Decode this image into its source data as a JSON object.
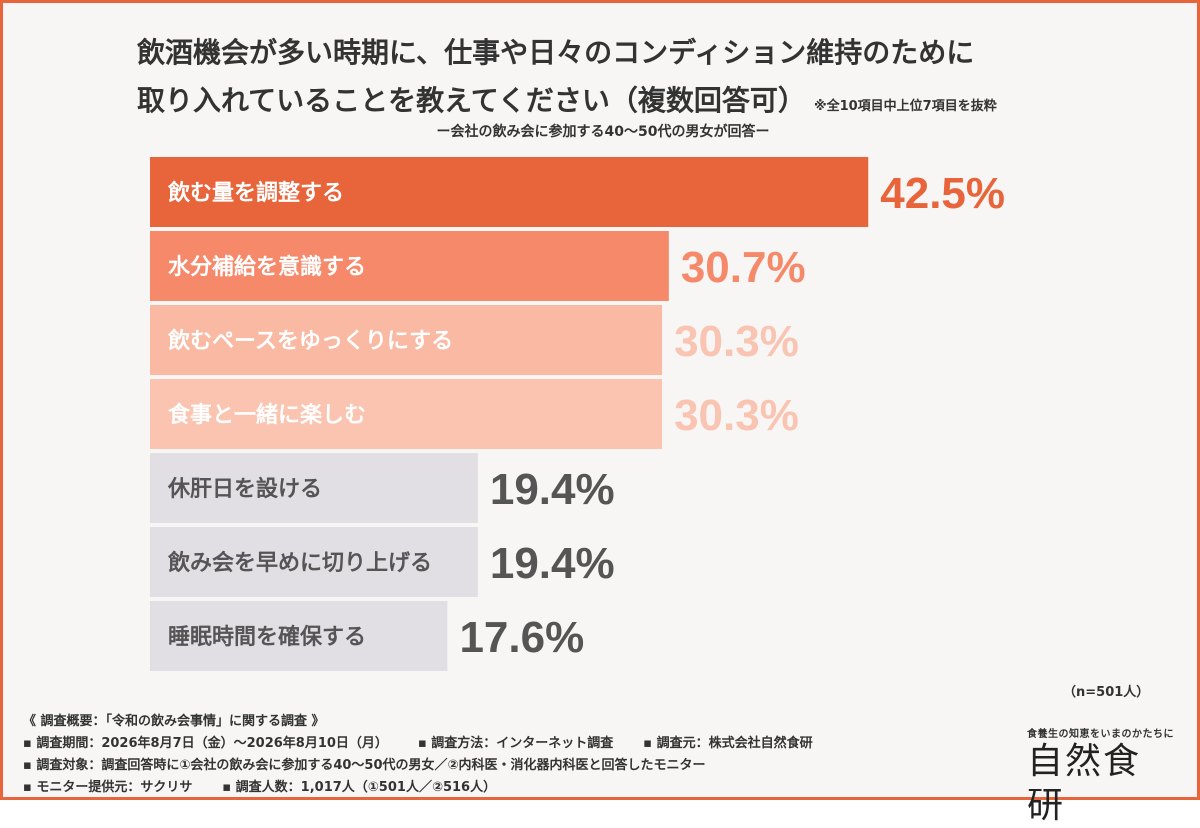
{
  "chart_data": {
    "type": "bar",
    "orientation": "horizontal",
    "title_line1": "飲酒機会が多い時期に、仕事や日々のコンディション維持のために",
    "title_line2": "取り入れていることを教えてください（複数回答可）",
    "title_note": "※全10項目中上位7項目を抜粋",
    "subtitle": "ー会社の飲み会に参加する40〜50代の男女が回答ー",
    "categories": [
      "飲む量を調整する",
      "水分補給を意識する",
      "飲むペースをゆっくりにする",
      "食事と一緒に楽しむ",
      "休肝日を設ける",
      "飲み会を早めに切り上げる",
      "睡眠時間を確保する"
    ],
    "values": [
      42.5,
      30.7,
      30.3,
      30.3,
      19.4,
      19.4,
      17.6
    ],
    "value_labels": [
      "42.5%",
      "30.7%",
      "30.3%",
      "30.3%",
      "19.4%",
      "19.4%",
      "17.6%"
    ],
    "unit": "%",
    "n_label": "（n=501人）",
    "colors": {
      "bars": [
        "#e8643a",
        "#f5896a",
        "#f9b9a3",
        "#fbc4b0",
        "#e2dfe4",
        "#e2dfe4",
        "#e2dfe4"
      ],
      "labels": [
        "#e8643a",
        "#f5896a",
        "#f9c4b2",
        "#f9c4b2",
        "#555555",
        "#555555",
        "#555555"
      ],
      "bar_text": [
        "#ffffff",
        "#ffffff",
        "#ffffff",
        "#ffffff",
        "#555555",
        "#555555",
        "#555555"
      ]
    }
  },
  "footer": {
    "overview": "《 調査概要：「令和の飲み会事情」に関する調査 》",
    "period": "▪ 調査期間：2026年8月7日（金）〜2026年8月10日（月）",
    "method": "▪ 調査方法：インターネット調査",
    "source": "▪ 調査元：株式会社自然食研",
    "target": "▪ 調査対象：調査回答時に①会社の飲み会に参加する40〜50代の男女／②内科医・消化器内科医と回答したモニター",
    "provider": "▪ モニター提供元：サクリサ",
    "count": "▪ 調査人数：1,017人（①501人／②516人）"
  },
  "brand": {
    "tagline": "食養生の知恵をいまのかたちに",
    "name": "自然食研"
  }
}
